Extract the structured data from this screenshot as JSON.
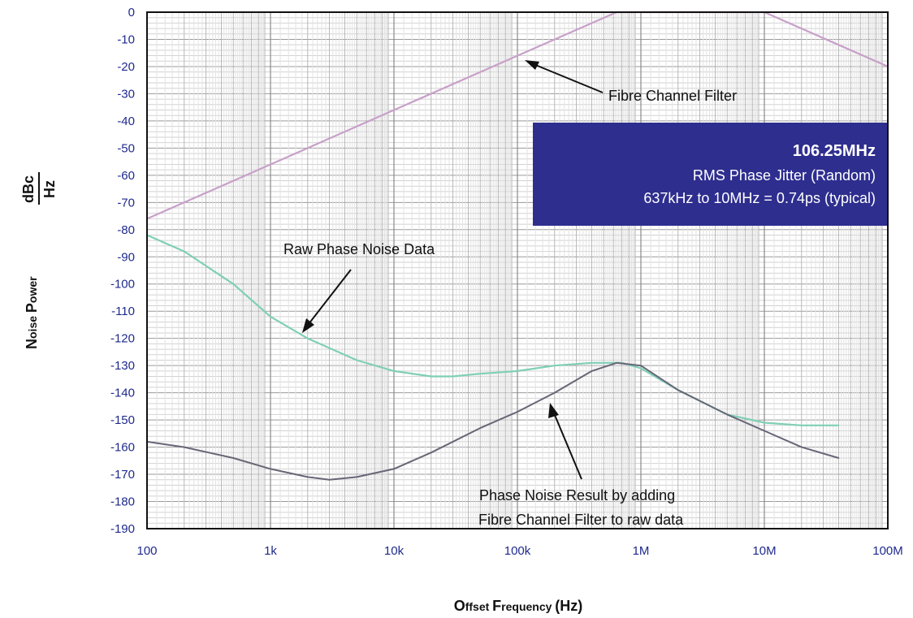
{
  "chart_data": {
    "type": "line",
    "x_scale": "log",
    "xlim": [
      100,
      100000000
    ],
    "ylim": [
      -190,
      0
    ],
    "grid": true,
    "x_ticks": [
      {
        "value": 100,
        "label": "100"
      },
      {
        "value": 1000,
        "label": "1k"
      },
      {
        "value": 10000,
        "label": "10k"
      },
      {
        "value": 100000,
        "label": "100k"
      },
      {
        "value": 1000000,
        "label": "1M"
      },
      {
        "value": 10000000,
        "label": "10M"
      },
      {
        "value": 100000000,
        "label": "100M"
      }
    ],
    "y_ticks": [
      "0",
      "-10",
      "-20",
      "-30",
      "-40",
      "-50",
      "-60",
      "-70",
      "-80",
      "-90",
      "-100",
      "-110",
      "-120",
      "-130",
      "-140",
      "-150",
      "-160",
      "-170",
      "-180",
      "-190"
    ],
    "xlabel": {
      "first_cap": "O",
      "rest": "ffset ",
      "first_cap2": "F",
      "rest2": "requency ",
      "unit": "(Hz)"
    },
    "ylabel": {
      "first_cap": "N",
      "rest": "oise ",
      "first_cap2": "P",
      "rest2": "ower",
      "frac_num": "dBc",
      "frac_den": "Hz"
    },
    "series": [
      {
        "id": "filter",
        "color": "#c8a0c8",
        "x": [
          100,
          1000,
          10000,
          100000,
          637000,
          1000000,
          3000000,
          10000000,
          100000000
        ],
        "y": [
          -76,
          -56,
          -36,
          -16,
          0,
          0,
          0,
          0,
          -20
        ]
      },
      {
        "id": "raw",
        "color": "#7fcfb6",
        "x": [
          100,
          200,
          500,
          1000,
          2000,
          5000,
          10000,
          20000,
          30000,
          50000,
          100000,
          200000,
          400000,
          700000,
          1000000,
          2000000,
          5000000,
          10000000,
          20000000,
          40000000
        ],
        "y": [
          -82,
          -88,
          -100,
          -112,
          -120,
          -128,
          -132,
          -134,
          -134,
          -133,
          -132,
          -130,
          -129,
          -129,
          -131,
          -139,
          -148,
          -151,
          -152,
          -152
        ]
      },
      {
        "id": "result",
        "color": "#666677",
        "x": [
          100,
          200,
          500,
          1000,
          2000,
          3000,
          5000,
          10000,
          20000,
          50000,
          100000,
          200000,
          400000,
          637000,
          1000000,
          2000000,
          5000000,
          10000000,
          20000000,
          40000000
        ],
        "y": [
          -158,
          -160,
          -164,
          -168,
          -171,
          -172,
          -171,
          -168,
          -162,
          -153,
          -147,
          -140,
          -132,
          -129,
          -130,
          -139,
          -148,
          -154,
          -160,
          -164
        ]
      }
    ],
    "annotations": [
      {
        "id": "filter-label",
        "text": "Fibre Channel Filter"
      },
      {
        "id": "raw-label",
        "text": "Raw Phase Noise Data"
      },
      {
        "id": "result-label-1",
        "text": "Phase Noise Result by adding"
      },
      {
        "id": "result-label-2",
        "text": "Fibre Channel Filter to raw data"
      }
    ],
    "info_box": {
      "title": "106.25MHz",
      "line1": "RMS Phase Jitter  (Random)",
      "line2": "637kHz to 10MHz = 0.74ps (typical)",
      "background": "#2e2e8f"
    }
  }
}
